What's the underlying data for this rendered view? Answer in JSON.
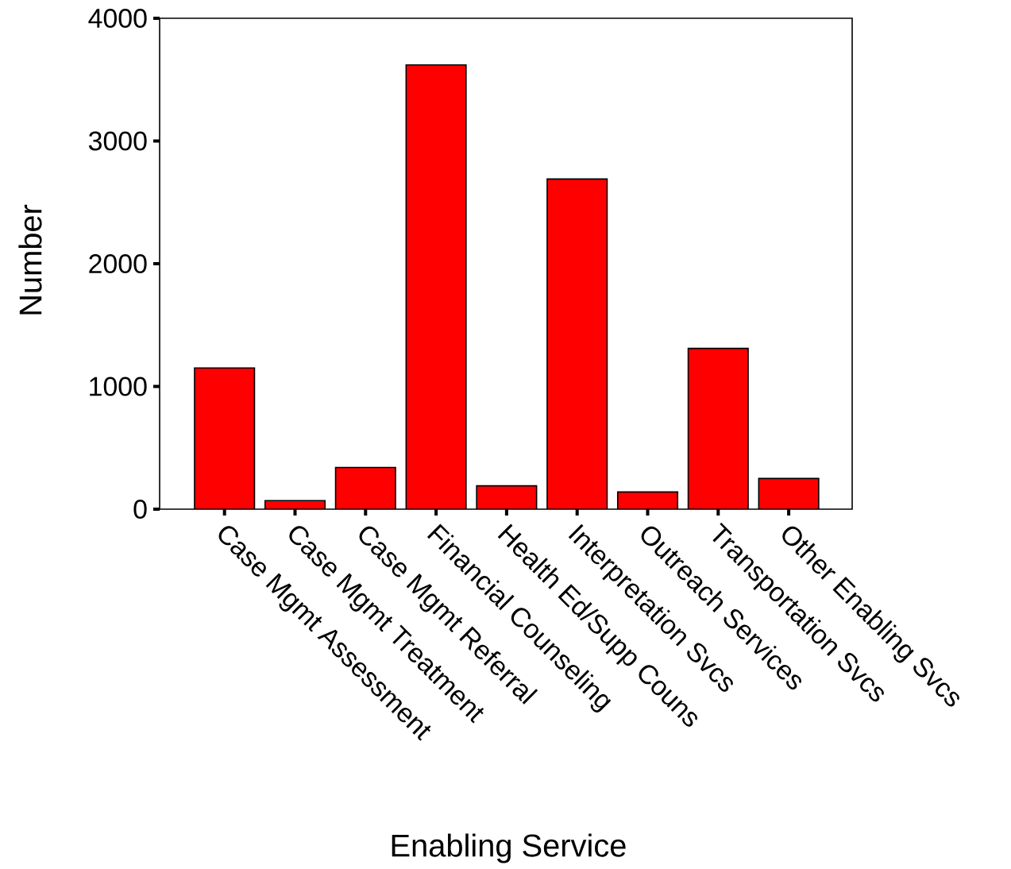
{
  "chart_data": {
    "type": "bar",
    "xlabel": "Enabling Service",
    "ylabel": "Number",
    "categories": [
      "Case Mgmt Assessment",
      "Case Mgmt Treatment",
      "Case Mgmt Referral",
      "Financial Counseling",
      "Health Ed/Supp Couns",
      "Interpretation Svcs",
      "Outreach Services",
      "Transportation Svcs",
      "Other Enabling Svcs"
    ],
    "values": [
      1150,
      70,
      340,
      3620,
      190,
      2690,
      140,
      1310,
      250
    ],
    "color": "#ff0000",
    "ylim": [
      0,
      4000
    ],
    "yticks": [
      0,
      1000,
      2000,
      3000,
      4000
    ],
    "grid": false
  }
}
